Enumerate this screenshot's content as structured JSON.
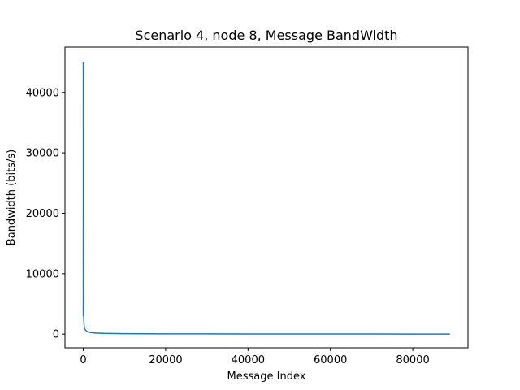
{
  "chart_data": {
    "type": "line",
    "title": "Scenario 4, node 8, Message BandWidth",
    "xlabel": "Message Index",
    "ylabel": "Bandwidth (bits/s)",
    "xlim": [
      -4450,
      93400
    ],
    "ylim": [
      -2260,
      47500
    ],
    "x_ticks": [
      0,
      20000,
      40000,
      60000,
      80000
    ],
    "x_tick_labels": [
      "0",
      "20000",
      "40000",
      "60000",
      "80000"
    ],
    "y_ticks": [
      0,
      10000,
      20000,
      30000,
      40000
    ],
    "y_tick_labels": [
      "0",
      "10000",
      "20000",
      "30000",
      "40000"
    ],
    "grid": false,
    "legend": "none",
    "series": [
      {
        "color": "#1f77b4",
        "x": [
          0,
          1,
          10,
          50,
          100,
          150,
          200,
          300,
          500,
          800,
          1000,
          1500,
          2000,
          3000,
          5000,
          8000,
          10000,
          15000,
          20000,
          30000,
          40000,
          50000,
          60000,
          70000,
          80000,
          89000
        ],
        "y": [
          3000,
          45000,
          20000,
          5000,
          3000,
          2000,
          1500,
          1000,
          700,
          500,
          400,
          300,
          250,
          180,
          120,
          90,
          75,
          60,
          50,
          40,
          30,
          25,
          20,
          18,
          15,
          12
        ]
      }
    ]
  }
}
